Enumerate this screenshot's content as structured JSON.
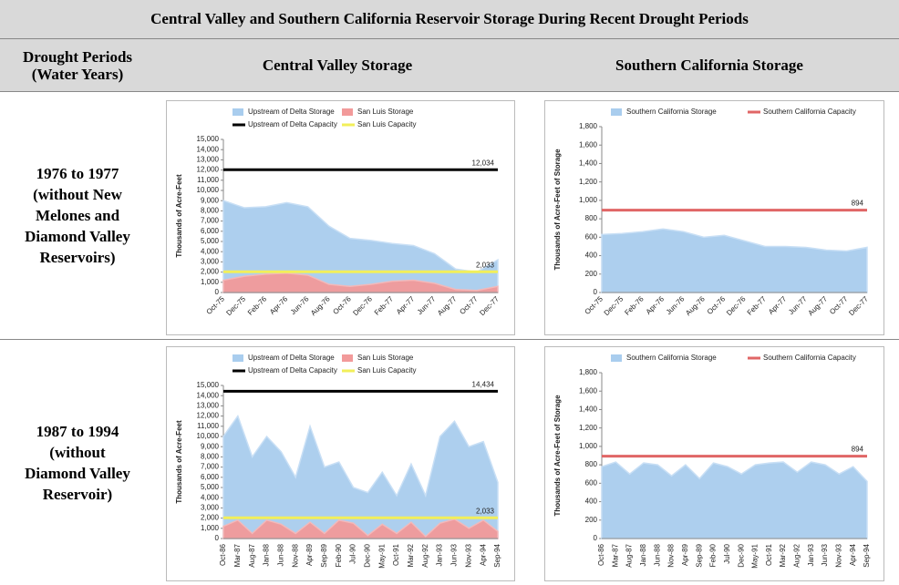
{
  "table": {
    "title": "Central Valley and Southern California Reservoir Storage During Recent Drought Periods",
    "headers": [
      "Drought Periods\n(Water Years)",
      "Central Valley Storage",
      "Southern California Storage"
    ],
    "rows": [
      {
        "label": "1976 to 1977\n(without New\nMelones and\nDiamond Valley\nReservoirs)",
        "charts": [
          {
            "type": "area",
            "y_label": "Thousands of Acre-Feet",
            "categories": [
              "Oct-75",
              "Dec-75",
              "Feb-76",
              "Apr-76",
              "Jun-76",
              "Aug-76",
              "Oct-76",
              "Dec-76",
              "Feb-77",
              "Apr-77",
              "Jun-77",
              "Aug-77",
              "Oct-77",
              "Dec-77"
            ],
            "series": [
              {
                "name": "Upstream of Delta Storage",
                "color": "#a9cdee",
                "values": [
                  9000,
                  8300,
                  8400,
                  8800,
                  8400,
                  6500,
                  5300,
                  5100,
                  4800,
                  4600,
                  3800,
                  2300,
                  2000,
                  3200
                ]
              },
              {
                "name": "San Luis Storage",
                "color": "#f29a9a",
                "values": [
                  1200,
                  1600,
                  1800,
                  1900,
                  1700,
                  800,
                  600,
                  800,
                  1100,
                  1200,
                  900,
                  300,
                  200,
                  600
                ]
              }
            ],
            "capacities": [
              {
                "name": "Upstream of Delta Capacity",
                "color": "#000000",
                "value": 12034,
                "value_label": "12,034"
              },
              {
                "name": "San Luis Capacity",
                "color": "#f2ef5a",
                "value": 2033,
                "value_label": "2,033"
              }
            ],
            "ylim": [
              0,
              15000
            ],
            "yticks": [
              0,
              {
                "value": 1000,
                "label": "1,000"
              },
              {
                "value": 2000,
                "label": "2,000"
              },
              {
                "value": 3000,
                "label": "3,000"
              },
              {
                "value": 4000,
                "label": "4,000"
              },
              {
                "value": 5000,
                "label": "5,000"
              },
              {
                "value": 6000,
                "label": "6,000"
              },
              {
                "value": 7000,
                "label": "7,000"
              },
              {
                "value": 8000,
                "label": "8,000"
              },
              {
                "value": 9000,
                "label": "9,000"
              },
              {
                "value": 10000,
                "label": "10,000"
              },
              {
                "value": 11000,
                "label": "11,000"
              },
              {
                "value": 12000,
                "label": "12,000"
              },
              {
                "value": 13000,
                "label": "13,000"
              },
              {
                "value": 14000,
                "label": "14,000"
              },
              {
                "value": 15000,
                "label": "15,000"
              }
            ]
          },
          {
            "type": "area",
            "y_label": "Thousands of Acre-Feet of Storage",
            "categories": [
              "Oct-75",
              "Dec-75",
              "Feb-76",
              "Apr-76",
              "Jun-76",
              "Aug-76",
              "Oct-76",
              "Dec-76",
              "Feb-77",
              "Apr-77",
              "Jun-77",
              "Aug-77",
              "Oct-77",
              "Dec-77"
            ],
            "series": [
              {
                "name": "Southern California Storage",
                "color": "#a9cdee",
                "values": [
                  630,
                  640,
                  660,
                  690,
                  660,
                  600,
                  620,
                  560,
                  500,
                  500,
                  490,
                  460,
                  450,
                  490
                ]
              }
            ],
            "capacities": [
              {
                "name": "Southern California Capacity",
                "color": "#e06666",
                "value": 894,
                "value_label": "894"
              }
            ],
            "ylim": [
              0,
              1800
            ],
            "yticks": [
              0,
              200,
              400,
              600,
              800,
              {
                "value": 1000,
                "label": "1,000"
              },
              {
                "value": 1200,
                "label": "1,200"
              },
              {
                "value": 1400,
                "label": "1,400"
              },
              {
                "value": 1600,
                "label": "1,600"
              },
              {
                "value": 1800,
                "label": "1,800"
              }
            ]
          }
        ]
      },
      {
        "label": "1987 to 1994\n(without\nDiamond Valley\nReservoir)",
        "charts": [
          {
            "type": "area",
            "y_label": "Thousands of Acre-Feet",
            "categories": [
              "Oct-86",
              "Mar-87",
              "Aug-87",
              "Jan-88",
              "Jun-88",
              "Nov-88",
              "Apr-89",
              "Sep-89",
              "Feb-90",
              "Jul-90",
              "Dec-90",
              "May-91",
              "Oct-91",
              "Mar-92",
              "Aug-92",
              "Jan-93",
              "Jun-93",
              "Nov-93",
              "Apr-94",
              "Sep-94"
            ],
            "series": [
              {
                "name": "Upstream of Delta Storage",
                "color": "#a9cdee",
                "values": [
                  10000,
                  12000,
                  8000,
                  10000,
                  8500,
                  6000,
                  11000,
                  7000,
                  7500,
                  5000,
                  4500,
                  6500,
                  4200,
                  7300,
                  4200,
                  10000,
                  11500,
                  9000,
                  9500,
                  5500
                ]
              },
              {
                "name": "San Luis Storage",
                "color": "#f29a9a",
                "values": [
                  1200,
                  1800,
                  500,
                  1800,
                  1400,
                  500,
                  1600,
                  500,
                  1800,
                  1500,
                  300,
                  1400,
                  500,
                  1600,
                  200,
                  1500,
                  1900,
                  1000,
                  1800,
                  700
                ]
              }
            ],
            "capacities": [
              {
                "name": "Upstream of Delta Capacity",
                "color": "#000000",
                "value": 14434,
                "value_label": "14,434"
              },
              {
                "name": "San Luis Capacity",
                "color": "#f2ef5a",
                "value": 2033,
                "value_label": "2,033"
              }
            ],
            "ylim": [
              0,
              15000
            ],
            "yticks": [
              0,
              {
                "value": 1000,
                "label": "1,000"
              },
              {
                "value": 2000,
                "label": "2,000"
              },
              {
                "value": 3000,
                "label": "3,000"
              },
              {
                "value": 4000,
                "label": "4,000"
              },
              {
                "value": 5000,
                "label": "5,000"
              },
              {
                "value": 6000,
                "label": "6,000"
              },
              {
                "value": 7000,
                "label": "7,000"
              },
              {
                "value": 8000,
                "label": "8,000"
              },
              {
                "value": 9000,
                "label": "9,000"
              },
              {
                "value": 10000,
                "label": "10,000"
              },
              {
                "value": 11000,
                "label": "11,000"
              },
              {
                "value": 12000,
                "label": "12,000"
              },
              {
                "value": 13000,
                "label": "13,000"
              },
              {
                "value": 14000,
                "label": "14,000"
              },
              {
                "value": 15000,
                "label": "15,000"
              }
            ]
          },
          {
            "type": "area",
            "y_label": "Thousands of Acre-Feet of Storage",
            "categories": [
              "Oct-86",
              "Mar-87",
              "Aug-87",
              "Jan-88",
              "Jun-88",
              "Nov-88",
              "Apr-89",
              "Sep-89",
              "Feb-90",
              "Jul-90",
              "Dec-90",
              "May-91",
              "Oct-91",
              "Mar-92",
              "Aug-92",
              "Jan-93",
              "Jun-93",
              "Nov-93",
              "Apr-94",
              "Sep-94"
            ],
            "series": [
              {
                "name": "Southern California Storage",
                "color": "#a9cdee",
                "values": [
                  780,
                  830,
                  700,
                  820,
                  800,
                  680,
                  800,
                  650,
                  820,
                  780,
                  700,
                  800,
                  820,
                  830,
                  720,
                  830,
                  800,
                  700,
                  780,
                  620
                ]
              }
            ],
            "capacities": [
              {
                "name": "Southern California Capacity",
                "color": "#e06666",
                "value": 894,
                "value_label": "894"
              }
            ],
            "ylim": [
              0,
              1800
            ],
            "yticks": [
              0,
              200,
              400,
              600,
              800,
              {
                "value": 1000,
                "label": "1,000"
              },
              {
                "value": 1200,
                "label": "1,200"
              },
              {
                "value": 1400,
                "label": "1,400"
              },
              {
                "value": 1600,
                "label": "1,600"
              },
              {
                "value": 1800,
                "label": "1,800"
              }
            ]
          }
        ]
      }
    ]
  }
}
